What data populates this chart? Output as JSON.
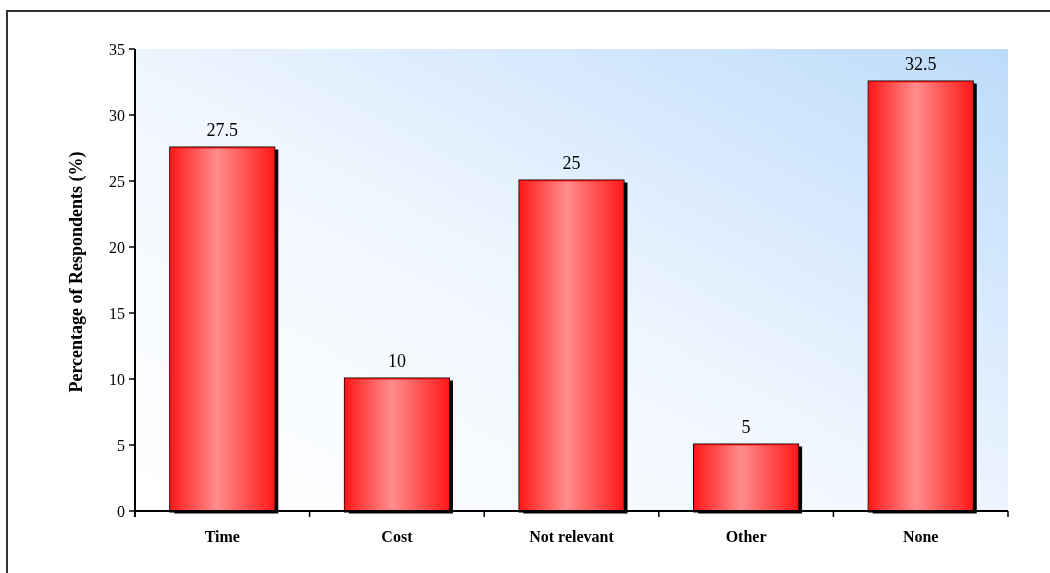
{
  "chart_data": {
    "type": "bar",
    "ylabel": "Percentage of Respondents (%)",
    "categories": [
      "Time",
      "Cost",
      "Not relevant",
      "Other",
      "None"
    ],
    "values": [
      27.5,
      10,
      25,
      5,
      32.5
    ],
    "color": "#ff1a1a",
    "ylim": [
      0,
      35
    ],
    "yticks": [
      0,
      5,
      10,
      15,
      20,
      25,
      30,
      35
    ],
    "data_labels": true
  }
}
